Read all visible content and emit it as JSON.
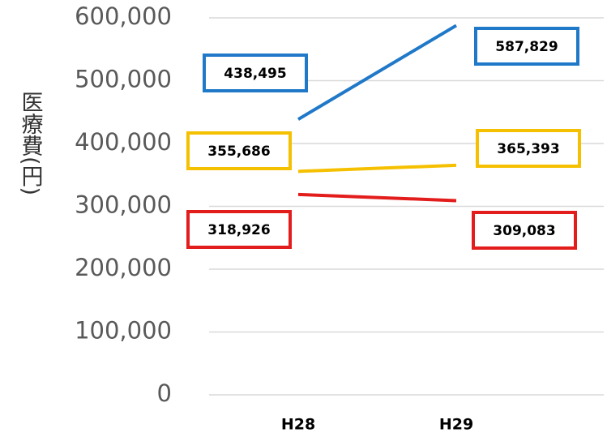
{
  "chart_data": {
    "type": "line",
    "y_label": "医療費(円)",
    "categories": [
      "H28",
      "H29"
    ],
    "series": [
      {
        "color": "#1f78c8",
        "values": [
          438495,
          587829
        ],
        "value_labels": [
          "438,495",
          "587,829"
        ]
      },
      {
        "color": "#f5c000",
        "values": [
          355686,
          365393
        ],
        "value_labels": [
          "355,686",
          "365,393"
        ]
      },
      {
        "color": "#e31c1c",
        "values": [
          318926,
          309083
        ],
        "value_labels": [
          "318,926",
          "309,083"
        ]
      }
    ],
    "ylim": [
      0,
      600000
    ],
    "yticks": [
      0,
      {
        "value": 100000,
        "label": "100,000"
      },
      {
        "value": 200000,
        "label": "200,000"
      },
      {
        "value": 300000,
        "label": "300,000"
      },
      {
        "value": 400000,
        "label": "400,000"
      },
      {
        "value": 500000,
        "label": "500,000"
      },
      {
        "value": 600000,
        "label": "600,000"
      }
    ],
    "grid": true
  }
}
